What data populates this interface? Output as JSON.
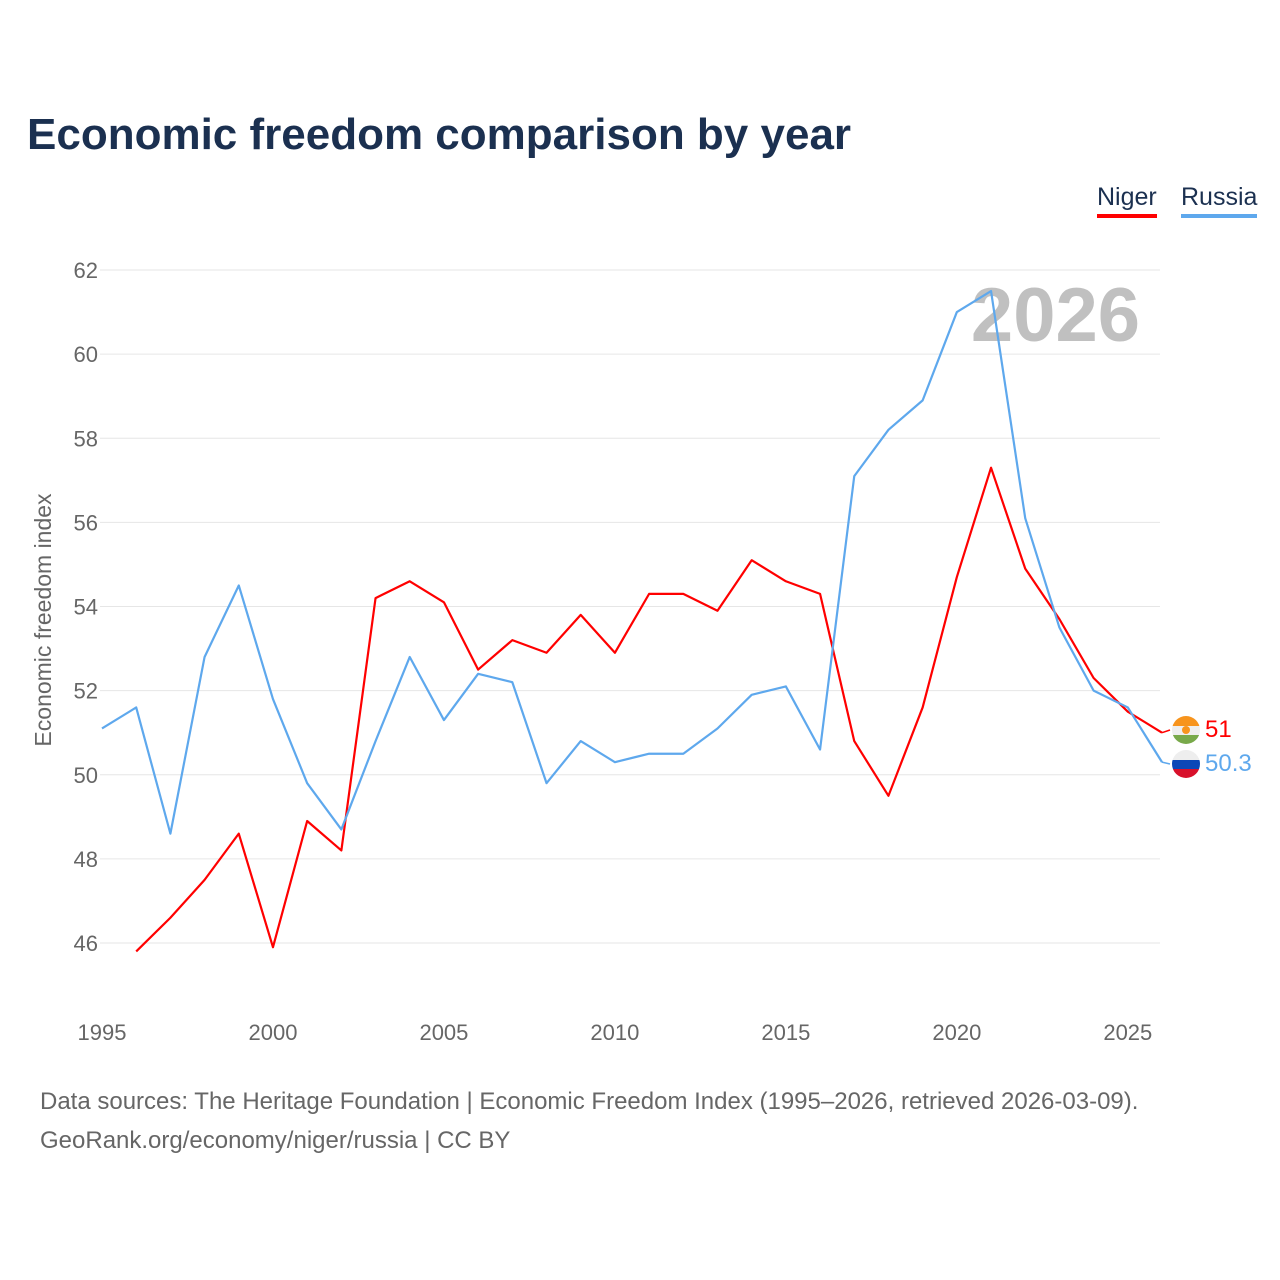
{
  "chart_data": {
    "type": "line",
    "title": "Economic freedom comparison by year",
    "xlabel": "",
    "ylabel": "Economic freedom index",
    "xlim": [
      1995,
      2026
    ],
    "ylim": [
      46,
      62
    ],
    "yticks": [
      46,
      48,
      50,
      52,
      54,
      56,
      58,
      60,
      62
    ],
    "xticks": [
      1995,
      2000,
      2005,
      2010,
      2015,
      2020,
      2025
    ],
    "watermark_year": "2026",
    "grid": true,
    "legend_placement": "top-right",
    "series": [
      {
        "name": "Niger",
        "color": "#ff0000",
        "end_label": "51",
        "x": [
          1996,
          1997,
          1998,
          1999,
          2000,
          2001,
          2002,
          2003,
          2004,
          2005,
          2006,
          2007,
          2008,
          2009,
          2010,
          2011,
          2012,
          2013,
          2014,
          2015,
          2016,
          2017,
          2018,
          2019,
          2020,
          2021,
          2022,
          2023,
          2024,
          2025,
          2026
        ],
        "values": [
          45.8,
          46.6,
          47.5,
          48.6,
          45.9,
          48.9,
          48.2,
          54.2,
          54.6,
          54.1,
          52.5,
          53.2,
          52.9,
          53.8,
          52.9,
          54.3,
          54.3,
          53.9,
          55.1,
          54.6,
          54.3,
          50.8,
          49.5,
          51.6,
          54.7,
          57.3,
          54.9,
          53.7,
          52.3,
          51.5,
          51.0
        ]
      },
      {
        "name": "Russia",
        "color": "#5ea8ed",
        "end_label": "50.3",
        "x": [
          1995,
          1996,
          1997,
          1998,
          1999,
          2000,
          2001,
          2002,
          2003,
          2004,
          2005,
          2006,
          2007,
          2008,
          2009,
          2010,
          2011,
          2012,
          2013,
          2014,
          2015,
          2016,
          2017,
          2018,
          2019,
          2020,
          2021,
          2022,
          2023,
          2024,
          2025,
          2026
        ],
        "values": [
          51.1,
          51.6,
          48.6,
          52.8,
          54.5,
          51.8,
          49.8,
          48.7,
          50.8,
          52.8,
          51.3,
          52.4,
          52.2,
          49.8,
          50.8,
          50.3,
          50.5,
          50.5,
          51.1,
          51.9,
          52.1,
          50.6,
          57.1,
          58.2,
          58.9,
          61.0,
          61.5,
          56.1,
          53.5,
          52.0,
          51.6,
          50.3
        ]
      }
    ]
  },
  "footer": {
    "line1": "Data sources: The Heritage Foundation | Economic Freedom Index (1995–2026, retrieved 2026-03-09).",
    "line2": "GeoRank.org/economy/niger/russia | CC BY"
  }
}
